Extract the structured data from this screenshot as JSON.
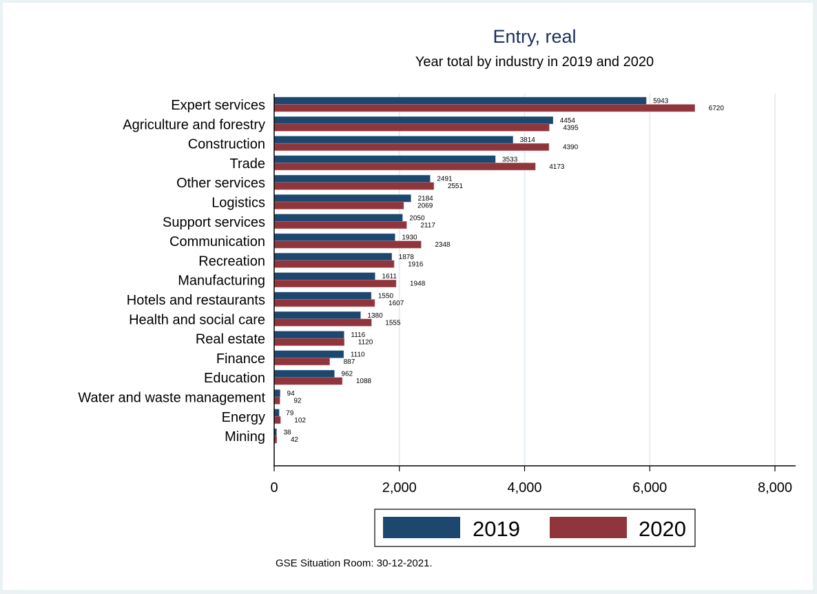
{
  "chart_data": {
    "type": "bar",
    "orientation": "horizontal",
    "title": "Entry, real",
    "subtitle": "Year total by industry in 2019 and 2020",
    "xlabel": "",
    "ylabel": "",
    "xlim": [
      0,
      8300
    ],
    "xticks": [
      0,
      2000,
      4000,
      6000,
      8000
    ],
    "xtick_labels": [
      "0",
      "2,000",
      "4,000",
      "6,000",
      "8,000"
    ],
    "grid": true,
    "legend_position": "bottom",
    "categories": [
      "Expert services",
      "Agriculture and forestry",
      "Construction",
      "Trade",
      "Other services",
      "Logistics",
      "Support services",
      "Communication",
      "Recreation",
      "Manufacturing",
      "Hotels and restaurants",
      "Health and social care",
      "Real estate",
      "Finance",
      "Education",
      "Water and waste management",
      "Energy",
      "Mining"
    ],
    "series": [
      {
        "name": "2019",
        "color": "#1c476e",
        "values": [
          5943,
          4454,
          3814,
          3533,
          2491,
          2184,
          2050,
          1930,
          1878,
          1611,
          1550,
          1380,
          1116,
          1110,
          962,
          94,
          79,
          38
        ]
      },
      {
        "name": "2020",
        "color": "#90353b",
        "values": [
          6720,
          4395,
          4390,
          4173,
          2551,
          2069,
          2117,
          2348,
          1916,
          1948,
          1607,
          1555,
          1120,
          887,
          1088,
          92,
          102,
          42
        ]
      }
    ],
    "note": "GSE Situation Room: 30-12-2021."
  }
}
